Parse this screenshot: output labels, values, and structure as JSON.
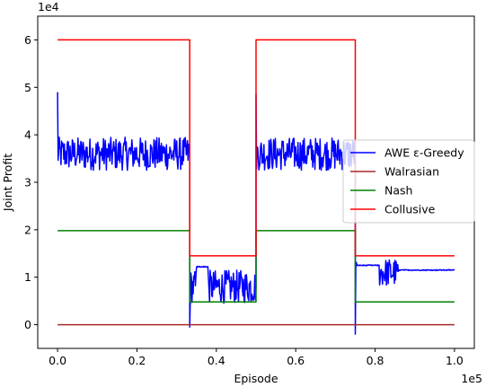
{
  "chart_data": {
    "type": "line",
    "xlabel": "Episode",
    "ylabel": "Joint Profit",
    "x_exponent_label": "1e5",
    "y_exponent_label": "1e4",
    "xlim": [
      -0.05,
      1.05
    ],
    "ylim": [
      -0.5,
      6.5
    ],
    "x_ticks": [
      0.0,
      0.2,
      0.4,
      0.6,
      0.8,
      1.0
    ],
    "x_tick_labels": [
      "0.0",
      "0.2",
      "0.4",
      "0.6",
      "0.8",
      "1.0"
    ],
    "y_ticks": [
      0,
      1,
      2,
      3,
      4,
      5,
      6
    ],
    "y_tick_labels": [
      "0",
      "1",
      "2",
      "3",
      "4",
      "5",
      "6"
    ],
    "grid": false,
    "legend_position": "center-right",
    "series": [
      {
        "name": "AWE ε-Greedy",
        "color": "#0000ff",
        "segments": [
          {
            "x_start": 0.0,
            "x_end": 0.333,
            "mean": 3.6,
            "amplitude": 0.35,
            "spike_at_start": 4.9
          },
          {
            "x_start": 0.333,
            "x_end": 0.5,
            "mean": 0.8,
            "amplitude": 0.35,
            "spike_at_start": -0.05
          },
          {
            "x_start": 0.5,
            "x_end": 0.75,
            "mean": 3.6,
            "amplitude": 0.35,
            "spike_at_start": 4.85
          },
          {
            "x_start": 0.75,
            "x_end": 1.0,
            "mean": 1.1,
            "amplitude": 0.3,
            "spike_at_start": -0.2
          }
        ],
        "plateaus": [
          {
            "x_start": 0.35,
            "x_end": 0.38,
            "y": 1.22
          },
          {
            "x_start": 0.755,
            "x_end": 0.81,
            "y": 1.25
          },
          {
            "x_start": 0.86,
            "x_end": 1.0,
            "y": 1.15
          }
        ]
      },
      {
        "name": "Walrasian",
        "color": "#a52a2a",
        "x": [
          0.0,
          1.0
        ],
        "y": [
          0.0,
          0.0
        ]
      },
      {
        "name": "Nash",
        "color": "#008000",
        "x": [
          0.0,
          0.333,
          0.333,
          0.5,
          0.5,
          0.75,
          0.75,
          1.0
        ],
        "y": [
          1.98,
          1.98,
          0.48,
          0.48,
          1.98,
          1.98,
          0.48,
          0.48
        ]
      },
      {
        "name": "Collusive",
        "color": "#ff0000",
        "x": [
          0.0,
          0.333,
          0.333,
          0.5,
          0.5,
          0.75,
          0.75,
          1.0
        ],
        "y": [
          6.0,
          6.0,
          1.45,
          1.45,
          6.0,
          6.0,
          1.45,
          1.45
        ]
      }
    ]
  }
}
